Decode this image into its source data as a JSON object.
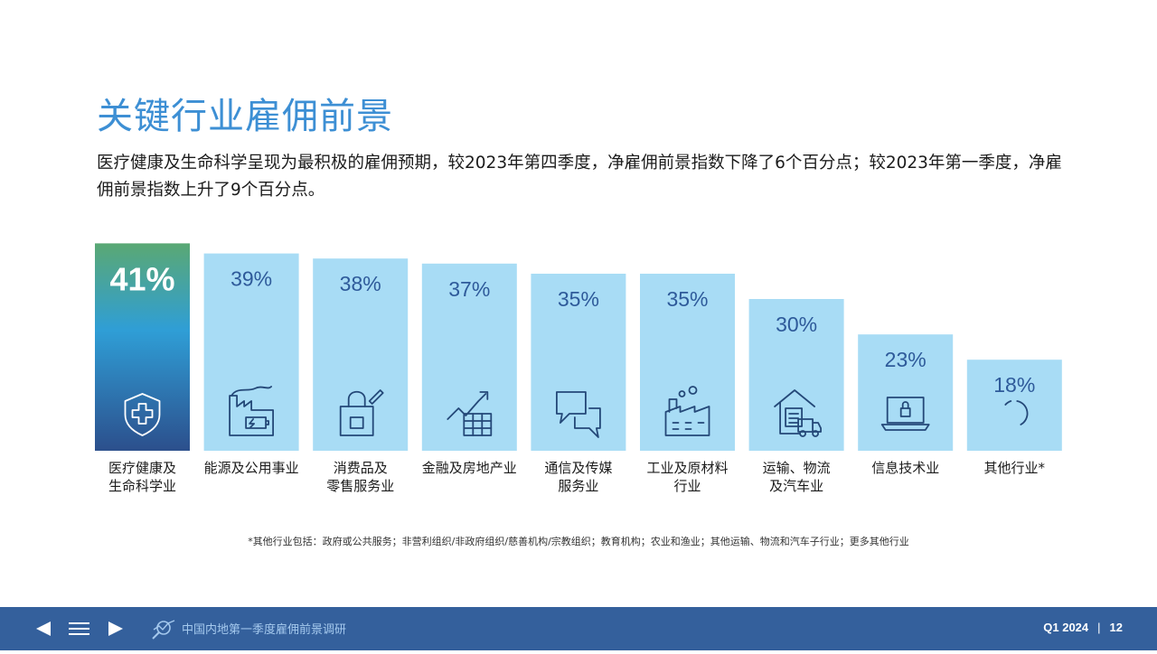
{
  "header": {
    "title": "关键行业雇佣前景",
    "subtitle": "医疗健康及生命科学呈现为最积极的雇佣预期，较2023年第四季度，净雇佣前景指数下降了6个百分点；较2023年第一季度，净雇佣前景指数上升了9个百分点。"
  },
  "chart_data": {
    "type": "bar",
    "categories": [
      [
        "医疗健康及",
        "生命科学业"
      ],
      [
        "能源及公用事业"
      ],
      [
        "消费品及",
        "零售服务业"
      ],
      [
        "金融及房地产业"
      ],
      [
        "通信及传媒",
        "服务业"
      ],
      [
        "工业及原材料",
        "行业"
      ],
      [
        "运输、物流",
        "及汽车业"
      ],
      [
        "信息技术业"
      ],
      [
        "其他行业*"
      ]
    ],
    "values": [
      41,
      39,
      38,
      37,
      35,
      35,
      30,
      23,
      18
    ],
    "value_labels": [
      "41%",
      "39%",
      "38%",
      "37%",
      "35%",
      "35%",
      "30%",
      "23%",
      "18%"
    ],
    "icons": [
      "shield-cross-icon",
      "factory-battery-icon",
      "shopping-bag-icon",
      "rising-chart-icon",
      "chat-bubbles-icon",
      "factory-icon",
      "warehouse-truck-icon",
      "laptop-lock-icon",
      "more-icon"
    ],
    "highlight_index": 0,
    "colors": {
      "bar": "#a8dcf5",
      "highlight_top": "#5aa874",
      "highlight_mid": "#2f9ed6",
      "highlight_bottom": "#2c4f8c",
      "label": "#2e5a9a",
      "icon": "#244878"
    }
  },
  "footnote": "*其他行业包括：政府或公共服务；非营利组织/非政府组织/慈善机构/宗教组织；教育机构；农业和渔业；其他运输、物流和汽车子行业；更多其他行业",
  "footer": {
    "brand": "中国内地第一季度雇佣前景调研",
    "period": "Q1 2024",
    "separator": "|",
    "page": "12",
    "icons": [
      "prev-arrow-icon",
      "menu-icon",
      "next-arrow-icon",
      "magnifier-chart-icon"
    ],
    "background": "#34609c"
  }
}
